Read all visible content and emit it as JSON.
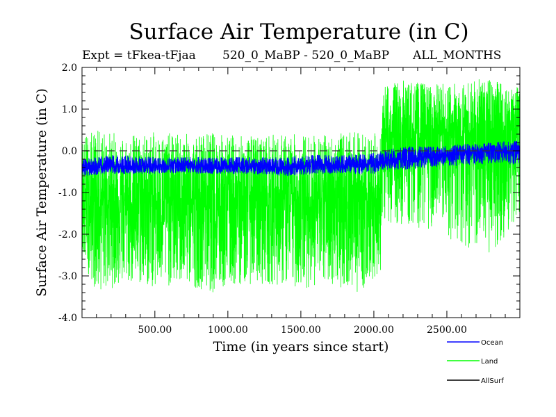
{
  "header": {
    "title": "Surface Air Temperature (in C)",
    "expt": "Expt = tFkea-tFjaa",
    "comparison": "520_0_MaBP - 520_0_MaBP",
    "months": "ALL_MONTHS"
  },
  "chart_data": {
    "type": "line",
    "title": "Surface Air Temperature (in C)",
    "xlabel": "Time (in years since start)",
    "ylabel": "Surface Air Temperature (in C)",
    "xlim": [
      1,
      3000
    ],
    "ylim": [
      -4.0,
      2.0
    ],
    "x_ticks": [
      500,
      1000,
      1500,
      2000,
      2500
    ],
    "x_tick_labels": [
      "500.00",
      "1000.00",
      "1500.00",
      "2000.00",
      "2500.00"
    ],
    "y_ticks": [
      -4.0,
      -3.0,
      -2.0,
      -1.0,
      0.0,
      1.0,
      2.0
    ],
    "y_tick_labels": [
      "-4.0",
      "-3.0",
      "-2.0",
      "-1.0",
      "0.0",
      "1.0",
      "2.0"
    ],
    "reference_line": {
      "y": 0.0,
      "style": "dashed"
    },
    "legend_position": "bottom-right, outside plot",
    "series": [
      {
        "name": "Land",
        "color": "#00ff00",
        "x": [
          1,
          100,
          300,
          500,
          700,
          900,
          1100,
          1300,
          1500,
          1700,
          1900,
          2050,
          2070,
          2200,
          2400,
          2600,
          2800,
          3000
        ],
        "mean": [
          -1.2,
          -1.2,
          -1.2,
          -1.2,
          -1.2,
          -1.25,
          -1.2,
          -1.2,
          -1.2,
          -1.2,
          -1.15,
          -1.1,
          0.25,
          0.3,
          0.35,
          0.4,
          0.45,
          0.5
        ],
        "min": [
          -2.6,
          -3.4,
          -3.2,
          -3.3,
          -3.2,
          -3.4,
          -3.2,
          -3.2,
          -3.3,
          -3.2,
          -3.4,
          -2.9,
          -1.7,
          -1.8,
          -1.9,
          -2.3,
          -2.5,
          -1.6
        ],
        "max": [
          0.4,
          0.5,
          0.4,
          0.45,
          0.4,
          0.45,
          0.35,
          0.4,
          0.4,
          0.4,
          0.45,
          0.4,
          1.6,
          1.7,
          1.6,
          1.65,
          1.75,
          1.5
        ]
      },
      {
        "name": "Ocean",
        "color": "#0000ff",
        "x": [
          1,
          200,
          500,
          800,
          1100,
          1400,
          1600,
          1800,
          2000,
          2060,
          2200,
          2400,
          2600,
          2800,
          3000
        ],
        "mean": [
          -0.42,
          -0.38,
          -0.38,
          -0.38,
          -0.38,
          -0.4,
          -0.35,
          -0.35,
          -0.3,
          -0.25,
          -0.2,
          -0.15,
          -0.05,
          0.0,
          0.0
        ],
        "min": [
          -0.6,
          -0.55,
          -0.55,
          -0.55,
          -0.55,
          -0.6,
          -0.55,
          -0.55,
          -0.55,
          -0.45,
          -0.45,
          -0.4,
          -0.35,
          -0.3,
          -0.35
        ],
        "max": [
          -0.2,
          -0.1,
          -0.15,
          -0.15,
          -0.15,
          -0.15,
          -0.1,
          -0.1,
          -0.05,
          0.0,
          0.1,
          0.1,
          0.15,
          0.2,
          0.25
        ]
      },
      {
        "name": "AllSurf",
        "color": "#000000"
      }
    ]
  }
}
